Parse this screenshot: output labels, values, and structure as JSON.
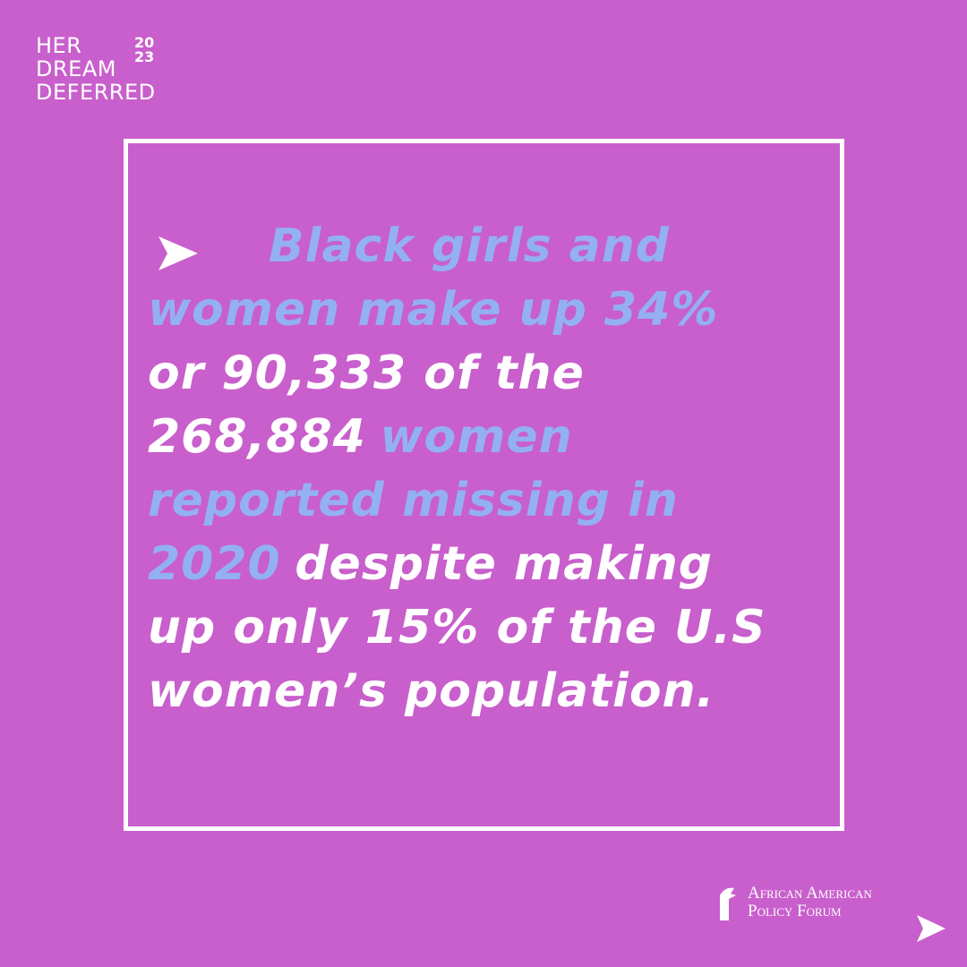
{
  "logo": {
    "lines": [
      "HER",
      "DREAM",
      "DEFERRED"
    ],
    "year": [
      "20",
      "23"
    ]
  },
  "statement": {
    "lines": [
      [
        {
          "text": "Black girls and",
          "highlight": true
        }
      ],
      [
        {
          "text": "women make up 34%",
          "highlight": true
        }
      ],
      [
        {
          "text": "or 90,333 of the",
          "highlight": false
        }
      ],
      [
        {
          "text": "268,884",
          "highlight": false
        },
        {
          "text": "women",
          "highlight": true
        }
      ],
      [
        {
          "text": "reported missing in",
          "highlight": true
        }
      ],
      [
        {
          "text": "2020",
          "highlight": true
        },
        {
          "text": "despite making",
          "highlight": false
        }
      ],
      [
        {
          "text": "up only 15% of the U.S",
          "highlight": false
        }
      ],
      [
        {
          "text": "women’s population.",
          "highlight": false
        }
      ]
    ]
  },
  "organization": [
    "African American",
    "Policy Forum"
  ]
}
